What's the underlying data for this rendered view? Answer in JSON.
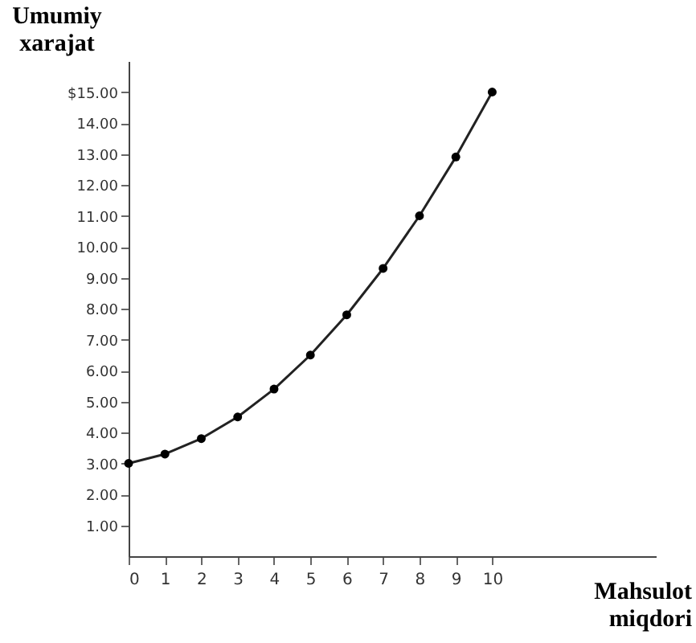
{
  "chart_data": {
    "type": "line",
    "xlabel": "Mahsulot\nmiqdori",
    "ylabel": "Umumiy\nxarajat",
    "x": [
      0,
      1,
      2,
      3,
      4,
      5,
      6,
      7,
      8,
      9,
      10
    ],
    "series": [
      {
        "color": "#222222",
        "values": [
          3.0,
          3.3,
          3.8,
          4.5,
          5.4,
          6.5,
          7.8,
          9.3,
          11.0,
          12.9,
          15.0
        ]
      }
    ],
    "xlim": [
      0,
      14.5
    ],
    "xticks": [
      0,
      1,
      2,
      3,
      4,
      5,
      6,
      7,
      8,
      9,
      10
    ],
    "ylim": [
      0,
      16
    ],
    "yticks": [
      {
        "value": 1,
        "label": "1.00"
      },
      {
        "value": 2,
        "label": "2.00"
      },
      {
        "value": 3,
        "label": "3.00"
      },
      {
        "value": 4,
        "label": "4.00"
      },
      {
        "value": 5,
        "label": "5.00"
      },
      {
        "value": 6,
        "label": "6.00"
      },
      {
        "value": 7,
        "label": "7.00"
      },
      {
        "value": 8,
        "label": "8.00"
      },
      {
        "value": 9,
        "label": "9.00"
      },
      {
        "value": 10,
        "label": "10.00"
      },
      {
        "value": 11,
        "label": "11.00"
      },
      {
        "value": 12,
        "label": "12.00"
      },
      {
        "value": 13,
        "label": "13.00"
      },
      {
        "value": 14,
        "label": "14.00"
      },
      {
        "value": 15,
        "label": "$15.00"
      }
    ],
    "grid": false,
    "marker": "circle",
    "line_style": "solid"
  }
}
